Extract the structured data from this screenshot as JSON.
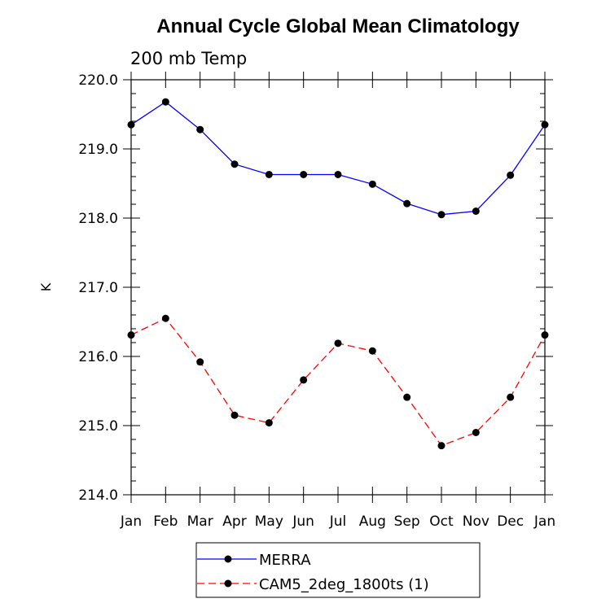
{
  "chart_data": {
    "type": "line",
    "title": "Annual Cycle Global Mean Climatology",
    "subtitle": "200 mb Temp",
    "xlabel": "",
    "ylabel": "K",
    "categories": [
      "Jan",
      "Feb",
      "Mar",
      "Apr",
      "May",
      "Jun",
      "Jul",
      "Aug",
      "Sep",
      "Oct",
      "Nov",
      "Dec",
      "Jan"
    ],
    "ylim": [
      214.0,
      220.0
    ],
    "yticks": [
      "214.0",
      "215.0",
      "216.0",
      "217.0",
      "218.0",
      "219.0",
      "220.0"
    ],
    "series": [
      {
        "name": "MERRA",
        "color": "#0000ff",
        "line_style": "solid",
        "marker_color": "#000000",
        "values": [
          219.35,
          219.68,
          219.28,
          218.78,
          218.63,
          218.63,
          218.63,
          218.49,
          218.21,
          218.05,
          218.1,
          218.62,
          219.35
        ]
      },
      {
        "name": "CAM5_2deg_1800ts (1)",
        "color": "#ff0000",
        "line_style": "dashed",
        "marker_color": "#000000",
        "values": [
          216.31,
          216.55,
          215.92,
          215.15,
          215.04,
          215.66,
          216.19,
          216.08,
          215.41,
          214.71,
          214.9,
          215.41,
          216.31
        ]
      }
    ],
    "legend_position": "bottom-center"
  }
}
